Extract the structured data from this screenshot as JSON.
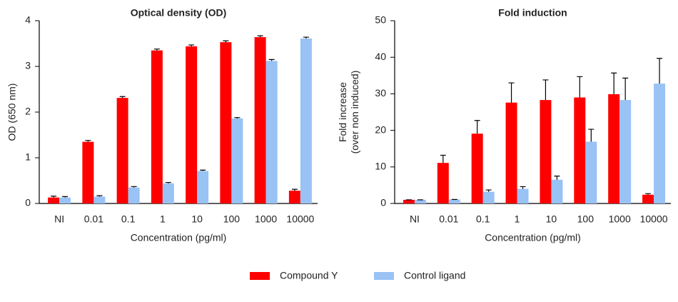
{
  "chart_data": [
    {
      "type": "bar",
      "title": "Optical density (OD)",
      "xlabel": "Concentration (pg/ml)",
      "ylabel": [
        "OD (650 nm)"
      ],
      "categories": [
        "NI",
        "0.01",
        "0.1",
        "1",
        "10",
        "100",
        "1000",
        "10000"
      ],
      "series": [
        {
          "name": "Compound Y",
          "color": "#ff0000",
          "values": [
            0.13,
            1.35,
            2.31,
            3.35,
            3.44,
            3.53,
            3.64,
            0.28
          ],
          "errors": [
            0.03,
            0.03,
            0.03,
            0.03,
            0.03,
            0.03,
            0.03,
            0.03
          ]
        },
        {
          "name": "Control ligand",
          "color": "#99c2f5",
          "values": [
            0.13,
            0.15,
            0.35,
            0.44,
            0.71,
            1.86,
            3.12,
            3.61
          ],
          "errors": [
            0.02,
            0.02,
            0.02,
            0.02,
            0.02,
            0.02,
            0.03,
            0.03
          ]
        }
      ],
      "ylim": [
        0,
        4
      ],
      "yticks": [
        0,
        1,
        2,
        3,
        4
      ]
    },
    {
      "type": "bar",
      "title": "Fold induction",
      "xlabel": "Concentration (pg/ml)",
      "ylabel": [
        "Fold increase",
        "(over non induced)"
      ],
      "categories": [
        "NI",
        "0.01",
        "0.1",
        "1",
        "10",
        "100",
        "1000",
        "10000"
      ],
      "series": [
        {
          "color": "#ff0000",
          "values": [
            1.0,
            11.1,
            19.1,
            27.6,
            28.3,
            29.0,
            29.9,
            2.4
          ],
          "errors": [
            0,
            2.1,
            3.6,
            5.4,
            5.5,
            5.7,
            5.8,
            0.3
          ]
        },
        {
          "color": "#99c2f5",
          "values": [
            1.0,
            1.1,
            3.2,
            4.0,
            6.5,
            16.9,
            28.3,
            32.8
          ],
          "errors": [
            0,
            0,
            0.5,
            0.6,
            1.0,
            3.4,
            6.0,
            6.9
          ]
        }
      ],
      "ylim": [
        0,
        50
      ],
      "yticks": [
        0,
        10,
        20,
        30,
        40,
        50
      ]
    }
  ]
}
